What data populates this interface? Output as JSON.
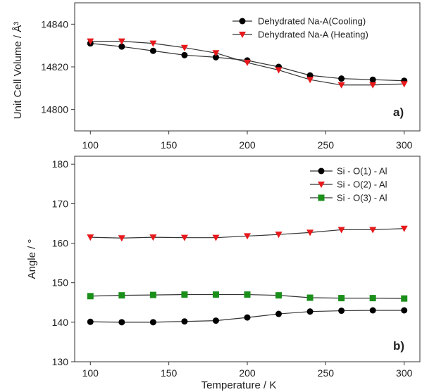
{
  "chart_data": [
    {
      "type": "line",
      "panel_label": "a)",
      "ylabel": "Unit Cell Volume / Å³",
      "xlim": [
        90,
        310
      ],
      "ylim": [
        14790,
        14850
      ],
      "xticks": [
        100,
        150,
        200,
        250,
        300
      ],
      "yticks": [
        14800,
        14820,
        14840
      ],
      "x": [
        100,
        120,
        140,
        160,
        180,
        200,
        220,
        240,
        260,
        280,
        300
      ],
      "legend_position": "top-right",
      "series": [
        {
          "name": "Dehydrated Na-A(Cooling)",
          "marker": "circle",
          "color": "#000000",
          "values": [
            14831,
            14829.5,
            14827.5,
            14825.5,
            14824.5,
            14823,
            14820,
            14816,
            14814.5,
            14814,
            14813.5
          ]
        },
        {
          "name": "Dehydrated Na-A (Heating)",
          "marker": "triangle-down",
          "color": "#e8191c",
          "values": [
            14832,
            14832,
            14831,
            14829,
            14826.5,
            14822,
            14818.5,
            14814,
            14811.5,
            14811.5,
            14812
          ]
        }
      ]
    },
    {
      "type": "line",
      "panel_label": "b)",
      "xlabel": "Temperature / K",
      "ylabel": "Angle / °",
      "xlim": [
        90,
        310
      ],
      "ylim": [
        130,
        182
      ],
      "xticks": [
        100,
        150,
        200,
        250,
        300
      ],
      "yticks": [
        130,
        140,
        150,
        160,
        170,
        180
      ],
      "x": [
        100,
        120,
        140,
        160,
        180,
        200,
        220,
        240,
        260,
        280,
        300
      ],
      "legend_position": "top-right",
      "series": [
        {
          "name": "Si - O(1) - Al",
          "marker": "circle",
          "color": "#000000",
          "values": [
            140.1,
            140.0,
            140.0,
            140.2,
            140.4,
            141.2,
            142.1,
            142.7,
            142.9,
            143.0,
            143.0
          ]
        },
        {
          "name": "Si - O(2) - Al",
          "marker": "triangle-down",
          "color": "#e8191c",
          "values": [
            161.5,
            161.3,
            161.5,
            161.4,
            161.4,
            161.8,
            162.2,
            162.7,
            163.4,
            163.4,
            163.7
          ]
        },
        {
          "name": "Si - O(3) - Al",
          "marker": "square",
          "color": "#1a8f1a",
          "values": [
            146.6,
            146.8,
            146.9,
            147.0,
            147.0,
            147.0,
            146.8,
            146.2,
            146.1,
            146.1,
            146.0
          ]
        }
      ]
    }
  ]
}
